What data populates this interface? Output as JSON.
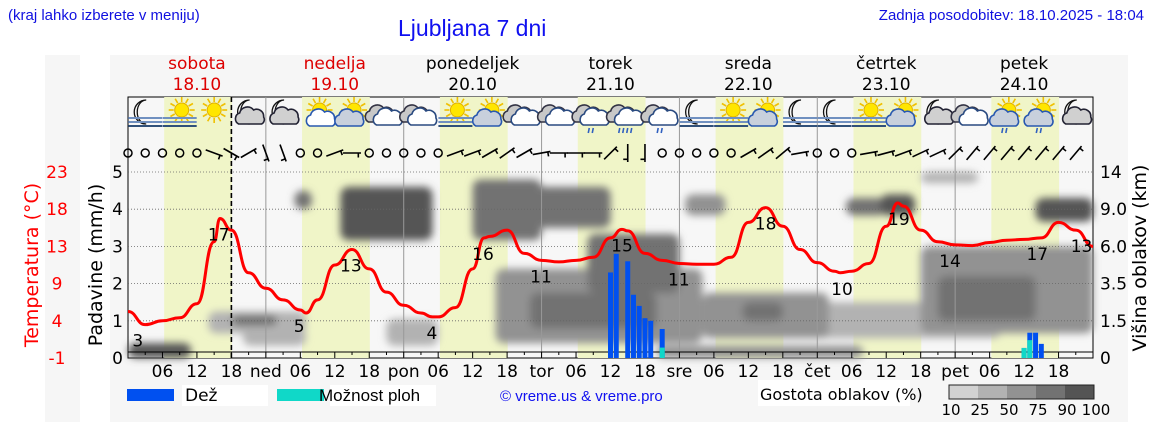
{
  "header": {
    "location_hint": "(kraj lahko izberete v meniju)",
    "title": "Ljubljana 7 dni",
    "last_update": "Zadnja posodobitev: 18.10.2025 - 18:04"
  },
  "days": [
    {
      "name": "sobota",
      "date": "18.10",
      "weekend": true
    },
    {
      "name": "nedelja",
      "date": "19.10",
      "weekend": true
    },
    {
      "name": "ponedeljek",
      "date": "20.10",
      "weekend": false
    },
    {
      "name": "torek",
      "date": "21.10",
      "weekend": false
    },
    {
      "name": "sreda",
      "date": "22.10",
      "weekend": false
    },
    {
      "name": "četrtek",
      "date": "23.10",
      "weekend": false
    },
    {
      "name": "petek",
      "date": "24.10",
      "weekend": false
    }
  ],
  "legend": {
    "rain": "Dež",
    "showers": "Možnost ploh",
    "copyright": "© vreme.us & vreme.pro",
    "cloud_density": "Gostota oblakov (%)",
    "cloud_scale": [
      "10",
      "25",
      "50",
      "75",
      "90",
      "100"
    ]
  },
  "colors": {
    "rain": "#0050f0",
    "showers": "#10d8c8",
    "temperature": "#ff0000",
    "daylight": "#f0f5c8",
    "weekend": "#dd0000",
    "cloud_levels": [
      "#d2d2d2",
      "#b2b2b2",
      "#929292",
      "#727272",
      "#545454"
    ]
  },
  "chart_data": {
    "type": "line",
    "time_range_hours": [
      0,
      168
    ],
    "now_hour": 18,
    "daylight_hours": [
      6.3,
      18.1
    ],
    "x_tick_labels": [
      "06",
      "12",
      "18",
      "ned",
      "06",
      "12",
      "18",
      "pon",
      "06",
      "12",
      "18",
      "tor",
      "06",
      "12",
      "18",
      "sre",
      "06",
      "12",
      "18",
      "čet",
      "06",
      "12",
      "18",
      "pet",
      "06",
      "12",
      "18"
    ],
    "temperature_axis": {
      "label": "Temperatura (°C)",
      "ticks": [
        "23",
        "18",
        "13",
        "9",
        "4",
        "-1"
      ],
      "range": [
        -1,
        23
      ]
    },
    "precip_axis": {
      "label": "Padavine (mm/h)",
      "ticks": [
        "0",
        "1",
        "2",
        "3",
        "4",
        "5"
      ],
      "range": [
        0,
        5
      ]
    },
    "cloud_axis": {
      "label": "Višina oblakov (km)",
      "ticks": [
        "0",
        "1.5",
        "3.5",
        "6.0",
        "9.0",
        "14"
      ]
    },
    "temperature": {
      "hours": [
        0,
        3,
        6,
        9,
        12,
        15,
        16,
        18,
        21,
        24,
        27,
        30,
        31,
        33,
        36,
        39,
        42,
        45,
        48,
        51,
        53,
        54,
        57,
        60,
        62,
        63,
        66,
        69,
        72,
        75,
        78,
        81,
        84,
        86,
        87,
        90,
        93,
        96,
        99,
        102,
        105,
        108,
        111,
        114,
        117,
        120,
        123,
        124,
        126,
        129,
        132,
        134,
        135,
        138,
        141,
        144,
        147,
        150,
        153,
        156,
        159,
        162,
        165,
        168
      ],
      "values": [
        5,
        3.3,
        3.8,
        4.2,
        6,
        14,
        17,
        15.5,
        10,
        8,
        6.5,
        5.2,
        4.8,
        6.5,
        11,
        13,
        10.5,
        7.5,
        5.8,
        4.8,
        4.3,
        4.3,
        5.5,
        10.5,
        14.5,
        14.7,
        15.5,
        12.5,
        11.6,
        11.4,
        11.6,
        12,
        14.5,
        15.6,
        15.4,
        12.5,
        11.6,
        11.2,
        11.1,
        11.1,
        12,
        16.5,
        18.4,
        16,
        13,
        11.3,
        10.2,
        10,
        10.2,
        11.2,
        16,
        19,
        18.6,
        15.5,
        14,
        13.6,
        13.5,
        13.9,
        14.2,
        14.3,
        14.5,
        16.5,
        15.5,
        13.4
      ]
    },
    "temperature_labels": [
      {
        "hour": 1.7,
        "value": "3"
      },
      {
        "hour": 15.8,
        "value": "17"
      },
      {
        "hour": 29.8,
        "value": "5"
      },
      {
        "hour": 38.8,
        "value": "13"
      },
      {
        "hour": 52.9,
        "value": "4"
      },
      {
        "hour": 61.8,
        "value": "16"
      },
      {
        "hour": 71.9,
        "value": "11"
      },
      {
        "hour": 86,
        "value": "15"
      },
      {
        "hour": 95.9,
        "value": "11"
      },
      {
        "hour": 111,
        "value": "18"
      },
      {
        "hour": 124.3,
        "value": "10"
      },
      {
        "hour": 134.2,
        "value": "19"
      },
      {
        "hour": 143.1,
        "value": "14"
      },
      {
        "hour": 158.3,
        "value": "17"
      },
      {
        "hour": 166,
        "value": "13"
      }
    ],
    "precipitation": [
      {
        "hour": 84,
        "rain": 2.3,
        "showers": 0
      },
      {
        "hour": 85,
        "rain": 2.8,
        "showers": 0
      },
      {
        "hour": 87,
        "rain": 2.6,
        "showers": 0
      },
      {
        "hour": 88,
        "rain": 1.7,
        "showers": 0
      },
      {
        "hour": 89,
        "rain": 1.4,
        "showers": 0
      },
      {
        "hour": 90,
        "rain": 1.07,
        "showers": 0
      },
      {
        "hour": 91,
        "rain": 1.0,
        "showers": 0
      },
      {
        "hour": 93,
        "rain": 0.78,
        "showers": 0.28
      },
      {
        "hour": 156,
        "rain": 0.27,
        "showers": 0.27
      },
      {
        "hour": 157,
        "rain": 0.68,
        "showers": 0.48
      },
      {
        "hour": 158,
        "rain": 0.68,
        "showers": 0
      },
      {
        "hour": 159,
        "rain": 0.38,
        "showers": 0
      }
    ],
    "clouds": [
      {
        "from": 0,
        "to": 11,
        "low_km": 0,
        "high_km": 0.6,
        "density": 90
      },
      {
        "from": 14,
        "to": 31,
        "low_km": 1.0,
        "high_km": 2.0,
        "density": 25
      },
      {
        "from": 18,
        "to": 26,
        "low_km": 1.3,
        "high_km": 1.8,
        "density": 75
      },
      {
        "from": 20,
        "to": 31,
        "low_km": 0.5,
        "high_km": 1.2,
        "density": 25
      },
      {
        "from": 29,
        "to": 32,
        "low_km": 9.0,
        "high_km": 11.5,
        "density": 75
      },
      {
        "from": 37,
        "to": 53,
        "low_km": 6.5,
        "high_km": 12,
        "density": 90
      },
      {
        "from": 45,
        "to": 54,
        "low_km": 0.5,
        "high_km": 1.6,
        "density": 25
      },
      {
        "from": 60,
        "to": 72,
        "low_km": 6.5,
        "high_km": 13,
        "density": 75
      },
      {
        "from": 70,
        "to": 84,
        "low_km": 7.5,
        "high_km": 12,
        "density": 75
      },
      {
        "from": 64,
        "to": 100,
        "low_km": 0.6,
        "high_km": 4.5,
        "density": 50
      },
      {
        "from": 70,
        "to": 92,
        "low_km": 1.2,
        "high_km": 3.0,
        "density": 75
      },
      {
        "from": 80,
        "to": 96,
        "low_km": 3.0,
        "high_km": 7.0,
        "density": 75
      },
      {
        "from": 97,
        "to": 104,
        "low_km": 8.5,
        "high_km": 11,
        "density": 50
      },
      {
        "from": 100,
        "to": 122,
        "low_km": 0.8,
        "high_km": 3.0,
        "density": 50
      },
      {
        "from": 107,
        "to": 114,
        "low_km": 1.5,
        "high_km": 2.5,
        "density": 75
      },
      {
        "from": 92,
        "to": 128,
        "low_km": 0,
        "high_km": 0.5,
        "density": 50
      },
      {
        "from": 120,
        "to": 152,
        "low_km": 0.8,
        "high_km": 2.5,
        "density": 25
      },
      {
        "from": 125,
        "to": 132,
        "low_km": 8.5,
        "high_km": 10.5,
        "density": 75
      },
      {
        "from": 131,
        "to": 137,
        "low_km": 8.5,
        "high_km": 11,
        "density": 90
      },
      {
        "from": 138,
        "to": 148,
        "low_km": 12.5,
        "high_km": 14,
        "density": 25
      },
      {
        "from": 138,
        "to": 168,
        "low_km": 1.0,
        "high_km": 6.0,
        "density": 50
      },
      {
        "from": 141,
        "to": 158,
        "low_km": 1.5,
        "high_km": 4.0,
        "density": 75
      },
      {
        "from": 158,
        "to": 168,
        "low_km": 8.0,
        "high_km": 10.5,
        "density": 90
      }
    ],
    "weather_icons": [
      "moon-fog",
      "sun-fog",
      "sun",
      "moon-cloud",
      "moon-cloud",
      "sun-small-cloud",
      "sun-cloud",
      "cloud",
      "cloud",
      "sun-fog",
      "sun-cloud",
      "cloud",
      "cloud",
      "cloud-light-rain",
      "cloud-rain",
      "cloud-light-rain",
      "moon-fog",
      "sun-fog",
      "sun-cloud",
      "moon-fog",
      "moon-fog",
      "sun-fog",
      "sun-cloud",
      "moon-cloud",
      "cloud",
      "sun-cloud-rain",
      "sun-cloud-rain",
      "moon-cloud"
    ],
    "wind_from_deg": [
      "calm",
      "calm",
      "calm",
      "calm",
      "calm",
      290,
      300,
      240,
      340,
      340,
      "calm",
      "calm",
      250,
      270,
      "calm",
      "calm",
      "calm",
      "calm",
      "calm",
      250,
      250,
      240,
      235,
      240,
      260,
      270,
      270,
      270,
      225,
      0,
      0,
      "calm",
      "calm",
      "calm",
      "calm",
      "calm",
      240,
      235,
      230,
      260,
      "calm",
      "calm",
      "calm",
      260,
      255,
      250,
      245,
      245,
      225,
      220,
      220,
      220,
      220,
      220,
      220,
      220
    ]
  }
}
